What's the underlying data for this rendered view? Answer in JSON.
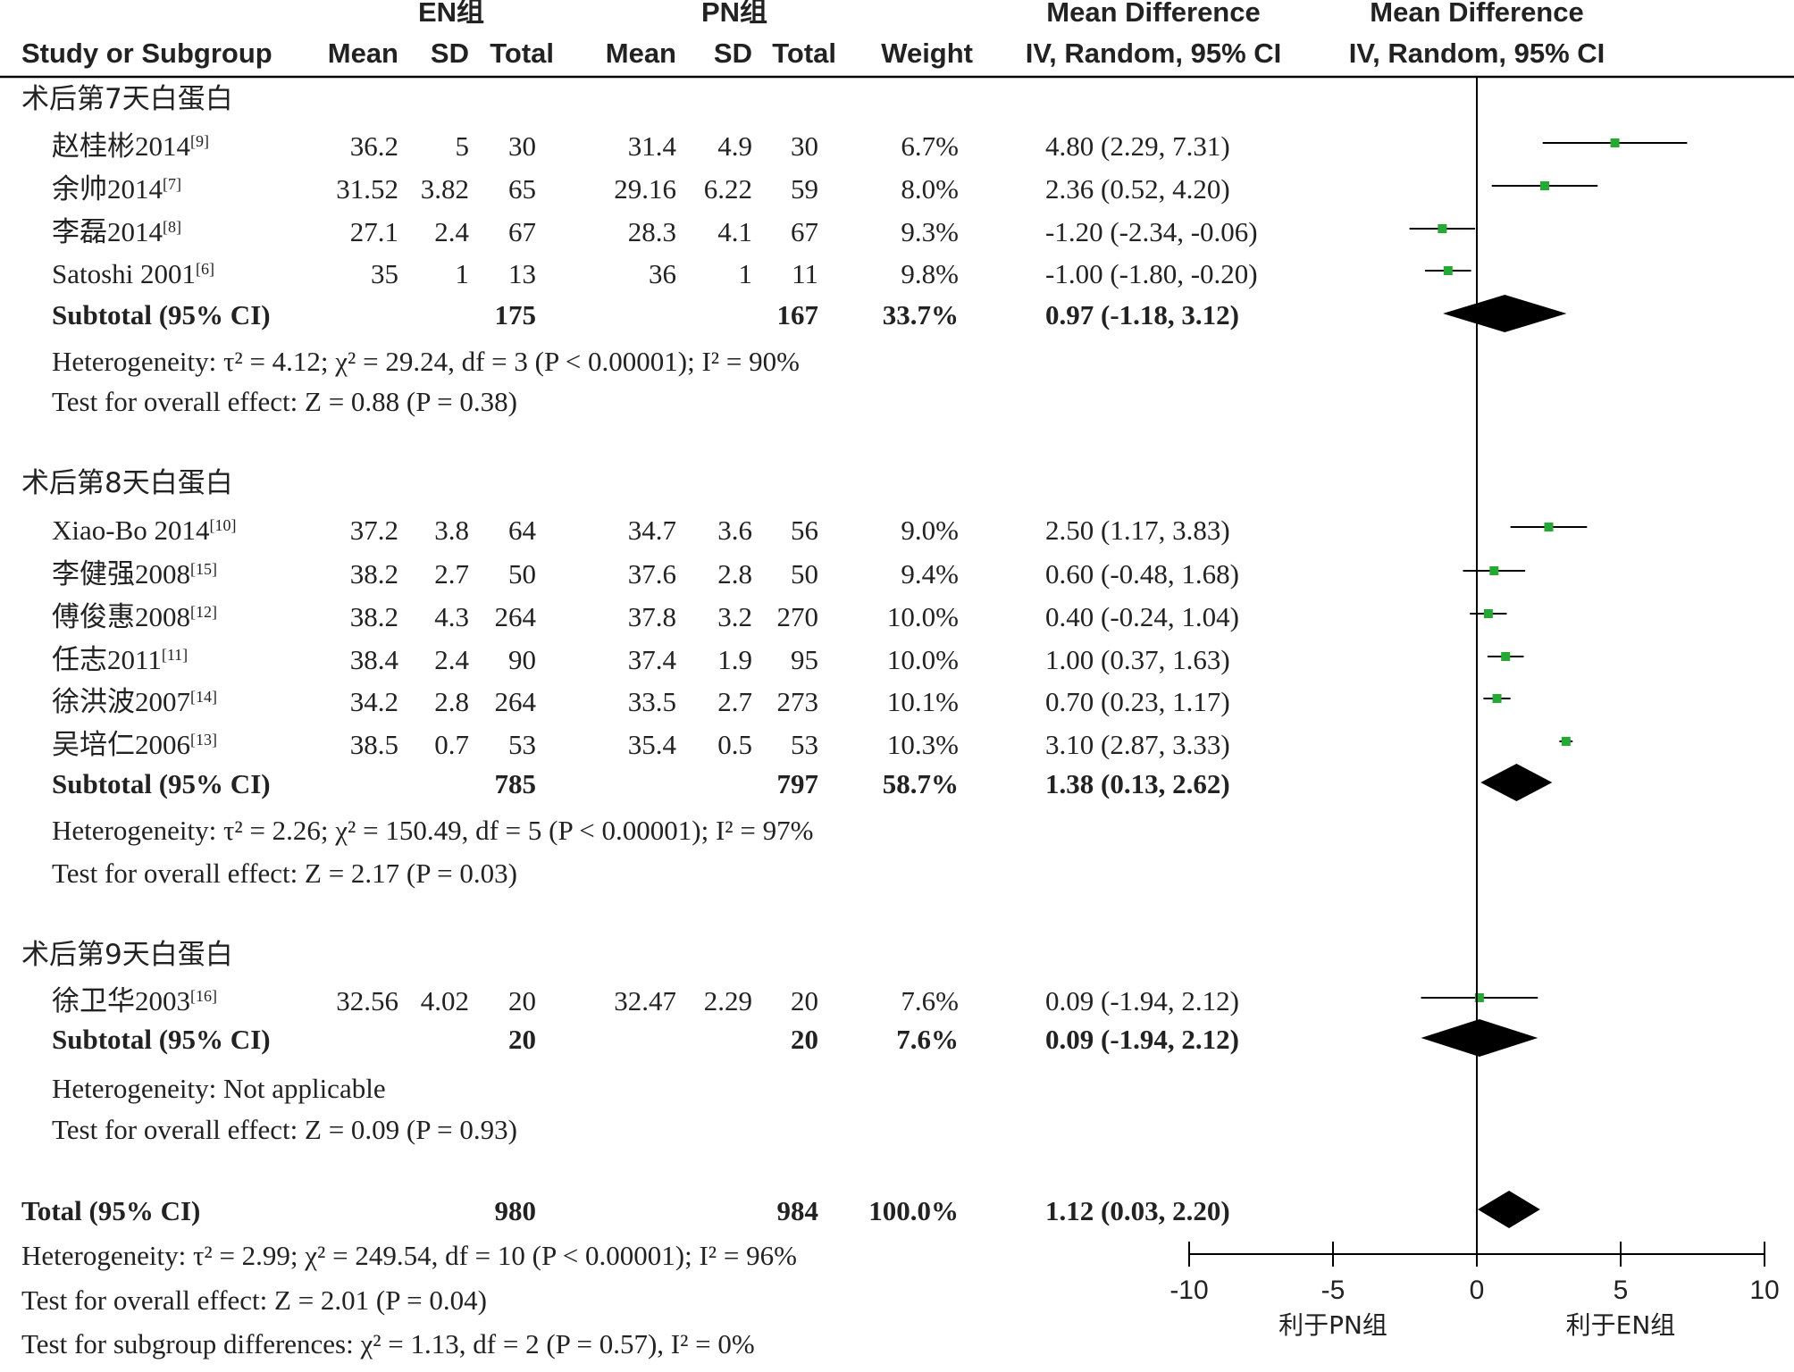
{
  "header": {
    "col_study": "Study or Subgroup",
    "en_group": "EN组",
    "pn_group": "PN组",
    "mean": "Mean",
    "sd": "SD",
    "total": "Total",
    "weight": "Weight",
    "md_title": "Mean Difference",
    "md_method": "IV, Random, 95% CI",
    "plot_title": "Mean Difference",
    "plot_method": "IV, Random, 95% CI"
  },
  "colors": {
    "marker": "#22aa33",
    "line": "#000000",
    "text": "#222222"
  },
  "chart_data": {
    "type": "forest",
    "xlim": [
      -10,
      10
    ],
    "xticks": [
      -10,
      -5,
      0,
      5,
      10
    ],
    "xtick_labels": [
      "-10",
      "-5",
      "0",
      "5",
      "10"
    ],
    "favours_left": "利于PN组",
    "favours_right": "利于EN组",
    "subgroups": [
      {
        "title": "术后第7天白蛋白",
        "studies": [
          {
            "name": "赵桂彬2014",
            "ref": "[9]",
            "en_mean": "36.2",
            "en_sd": "5",
            "en_total": "30",
            "pn_mean": "31.4",
            "pn_sd": "4.9",
            "pn_total": "30",
            "weight": "6.7%",
            "ci_text": "4.80 (2.29, 7.31)",
            "md": 4.8,
            "lo": 2.29,
            "hi": 7.31
          },
          {
            "name": "余帅2014",
            "ref": "[7]",
            "en_mean": "31.52",
            "en_sd": "3.82",
            "en_total": "65",
            "pn_mean": "29.16",
            "pn_sd": "6.22",
            "pn_total": "59",
            "weight": "8.0%",
            "ci_text": "2.36 (0.52, 4.20)",
            "md": 2.36,
            "lo": 0.52,
            "hi": 4.2
          },
          {
            "name": "李磊2014",
            "ref": "[8]",
            "en_mean": "27.1",
            "en_sd": "2.4",
            "en_total": "67",
            "pn_mean": "28.3",
            "pn_sd": "4.1",
            "pn_total": "67",
            "weight": "9.3%",
            "ci_text": "-1.20 (-2.34, -0.06)",
            "md": -1.2,
            "lo": -2.34,
            "hi": -0.06
          },
          {
            "name": "Satoshi 2001",
            "ref": "[6]",
            "en_mean": "35",
            "en_sd": "1",
            "en_total": "13",
            "pn_mean": "36",
            "pn_sd": "1",
            "pn_total": "11",
            "weight": "9.8%",
            "ci_text": "-1.00 (-1.80, -0.20)",
            "md": -1.0,
            "lo": -1.8,
            "hi": -0.2
          }
        ],
        "subtotal": {
          "label": "Subtotal (95% CI)",
          "en_total": "175",
          "pn_total": "167",
          "weight": "33.7%",
          "ci_text": "0.97 (-1.18, 3.12)",
          "md": 0.97,
          "lo": -1.18,
          "hi": 3.12
        },
        "heterogeneity": "Heterogeneity: τ² = 4.12; χ² = 29.24, df = 3 (P < 0.00001); I² = 90%",
        "overall": "Test for overall effect: Z = 0.88 (P = 0.38)"
      },
      {
        "title": "术后第8天白蛋白",
        "studies": [
          {
            "name": "Xiao-Bo 2014",
            "ref": "[10]",
            "en_mean": "37.2",
            "en_sd": "3.8",
            "en_total": "64",
            "pn_mean": "34.7",
            "pn_sd": "3.6",
            "pn_total": "56",
            "weight": "9.0%",
            "ci_text": "2.50 (1.17, 3.83)",
            "md": 2.5,
            "lo": 1.17,
            "hi": 3.83
          },
          {
            "name": "李健强2008",
            "ref": "[15]",
            "en_mean": "38.2",
            "en_sd": "2.7",
            "en_total": "50",
            "pn_mean": "37.6",
            "pn_sd": "2.8",
            "pn_total": "50",
            "weight": "9.4%",
            "ci_text": "0.60 (-0.48, 1.68)",
            "md": 0.6,
            "lo": -0.48,
            "hi": 1.68
          },
          {
            "name": "傅俊惠2008",
            "ref": "[12]",
            "en_mean": "38.2",
            "en_sd": "4.3",
            "en_total": "264",
            "pn_mean": "37.8",
            "pn_sd": "3.2",
            "pn_total": "270",
            "weight": "10.0%",
            "ci_text": "0.40 (-0.24, 1.04)",
            "md": 0.4,
            "lo": -0.24,
            "hi": 1.04
          },
          {
            "name": "任志2011",
            "ref": "[11]",
            "en_mean": "38.4",
            "en_sd": "2.4",
            "en_total": "90",
            "pn_mean": "37.4",
            "pn_sd": "1.9",
            "pn_total": "95",
            "weight": "10.0%",
            "ci_text": "1.00 (0.37, 1.63)",
            "md": 1.0,
            "lo": 0.37,
            "hi": 1.63
          },
          {
            "name": "徐洪波2007",
            "ref": "[14]",
            "en_mean": "34.2",
            "en_sd": "2.8",
            "en_total": "264",
            "pn_mean": "33.5",
            "pn_sd": "2.7",
            "pn_total": "273",
            "weight": "10.1%",
            "ci_text": "0.70 (0.23, 1.17)",
            "md": 0.7,
            "lo": 0.23,
            "hi": 1.17
          },
          {
            "name": "吴培仁2006",
            "ref": "[13]",
            "en_mean": "38.5",
            "en_sd": "0.7",
            "en_total": "53",
            "pn_mean": "35.4",
            "pn_sd": "0.5",
            "pn_total": "53",
            "weight": "10.3%",
            "ci_text": "3.10 (2.87, 3.33)",
            "md": 3.1,
            "lo": 2.87,
            "hi": 3.33
          }
        ],
        "subtotal": {
          "label": "Subtotal (95% CI)",
          "en_total": "785",
          "pn_total": "797",
          "weight": "58.7%",
          "ci_text": "1.38 (0.13, 2.62)",
          "md": 1.38,
          "lo": 0.13,
          "hi": 2.62
        },
        "heterogeneity": "Heterogeneity: τ² = 2.26; χ² = 150.49, df = 5 (P < 0.00001); I² = 97%",
        "overall": "Test for overall effect: Z = 2.17 (P = 0.03)"
      },
      {
        "title": "术后第9天白蛋白",
        "studies": [
          {
            "name": "徐卫华2003",
            "ref": "[16]",
            "en_mean": "32.56",
            "en_sd": "4.02",
            "en_total": "20",
            "pn_mean": "32.47",
            "pn_sd": "2.29",
            "pn_total": "20",
            "weight": "7.6%",
            "ci_text": "0.09 (-1.94, 2.12)",
            "md": 0.09,
            "lo": -1.94,
            "hi": 2.12
          }
        ],
        "subtotal": {
          "label": "Subtotal (95% CI)",
          "en_total": "20",
          "pn_total": "20",
          "weight": "7.6%",
          "ci_text": "0.09 (-1.94, 2.12)",
          "md": 0.09,
          "lo": -1.94,
          "hi": 2.12
        },
        "heterogeneity": "Heterogeneity: Not applicable",
        "overall": "Test for overall effect: Z = 0.09 (P = 0.93)"
      }
    ],
    "total": {
      "label": "Total (95% CI)",
      "en_total": "980",
      "pn_total": "984",
      "weight": "100.0%",
      "ci_text": "1.12 (0.03, 2.20)",
      "md": 1.12,
      "lo": 0.03,
      "hi": 2.2
    },
    "total_heterogeneity": "Heterogeneity: τ² = 2.99; χ² = 249.54, df = 10 (P < 0.00001); I² = 96%",
    "total_overall": "Test for overall effect: Z = 2.01 (P = 0.04)",
    "subgroup_differences": "Test for subgroup differences: χ² = 1.13, df = 2 (P = 0.57), I² = 0%"
  }
}
